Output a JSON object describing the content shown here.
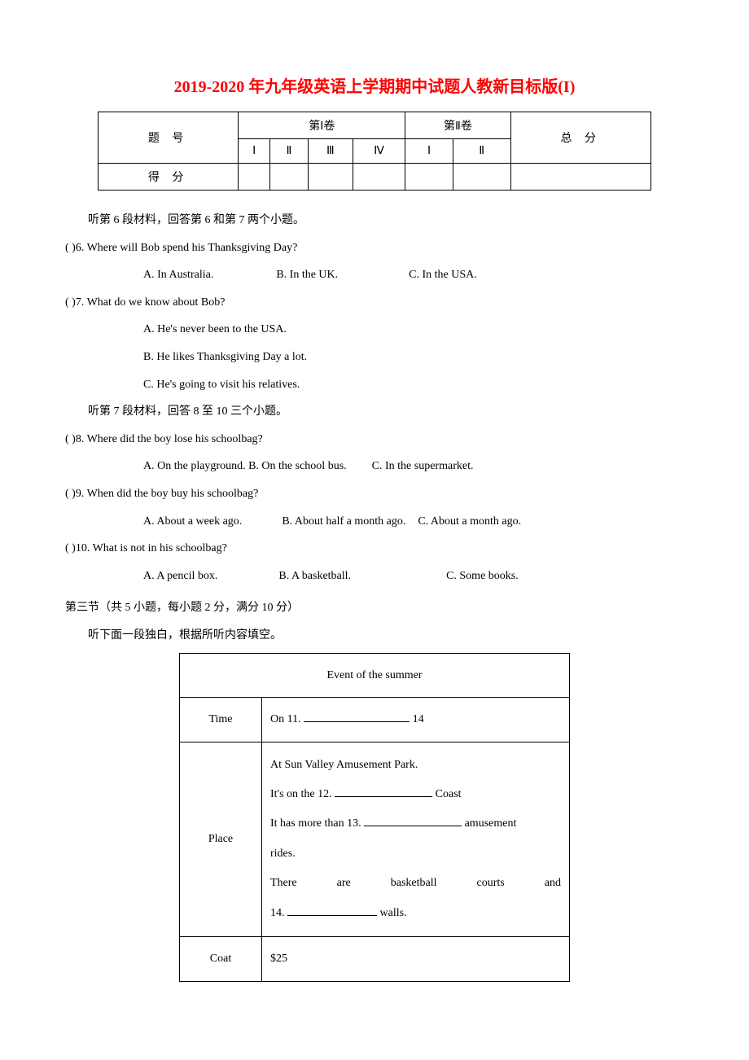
{
  "title": "2019-2020 年九年级英语上学期期中试题人教新目标版(I)",
  "scoreTable": {
    "row1": {
      "c1": "题  号",
      "c2": "第Ⅰ卷",
      "c3": "第Ⅱ卷",
      "c4": "总  分"
    },
    "row2": {
      "c1": "Ⅰ",
      "c2": "Ⅱ",
      "c3": "Ⅲ",
      "c4": "Ⅳ",
      "c5": "Ⅰ",
      "c6": "Ⅱ"
    },
    "row3": {
      "c1": "得  分"
    }
  },
  "intro6": "听第 6 段材料，回答第 6 和第 7 两个小题。",
  "q6": {
    "paren": "(     )6.",
    "text": "Where will Bob spend his Thanksgiving Day?",
    "a": "A. In Australia.",
    "b": "B. In the UK.",
    "c": "C. In the USA."
  },
  "q7": {
    "paren": "(     )7.",
    "text": "What do we know about Bob?",
    "a": "A. He's never been to the USA.",
    "b": "B. He likes Thanksgiving Day a lot.",
    "c": "C. He's going to visit his relatives."
  },
  "intro7": "听第 7 段材料，回答 8 至 10 三个小题。",
  "q8": {
    "paren": "(     )8.",
    "text": "Where did the boy lose his schoolbag?",
    "a": "A. On the playground.",
    "b": "B. On the school bus.",
    "c": "C. In the supermarket."
  },
  "q9": {
    "paren": "(     )9.",
    "text": "When did the boy buy his schoolbag?",
    "a": "A. About a week ago.",
    "b": "B. About half a month ago.",
    "c": "C. About a month ago."
  },
  "q10": {
    "paren": "(     )10.",
    "text": "What is not in his schoolbag?",
    "a": "A. A pencil box.",
    "b": "B. A basketball.",
    "c": "C. Some books."
  },
  "section3": {
    "heading": "第三节（共 5 小题，每小题 2 分，满分 10 分）",
    "sub": "听下面一段独白，根据所听内容填空。"
  },
  "eventTable": {
    "header": "Event of the summer",
    "time": {
      "label": "Time",
      "prefix": "On 11.",
      "suffix": "14"
    },
    "place": {
      "label": "Place",
      "l1": "At Sun Valley Amusement Park.",
      "l2a": "It's on the 12.",
      "l2b": "Coast",
      "l3a": "It has more than 13.",
      "l3b": " amusement",
      "l3c": "rides.",
      "l4a": "There",
      "l4b": "are",
      "l4c": "basketball",
      "l4d": "courts",
      "l4e": "and",
      "l5a": "14.",
      "l5b": "walls."
    },
    "coat": {
      "label": "Coat",
      "value": "$25"
    }
  },
  "style": {
    "gapQ6ab": "70px",
    "gapQ6bc": "80px",
    "gapQ8bc": "24px",
    "gapQ9ab": "42px",
    "gapQ9bc": "8px",
    "gapQ10ab": "68px",
    "gapQ10bc": "110px",
    "blankWidthTime": "130px",
    "blankWidth12": "120px",
    "blankWidth13": "120px",
    "blankWidth14": "110px"
  }
}
